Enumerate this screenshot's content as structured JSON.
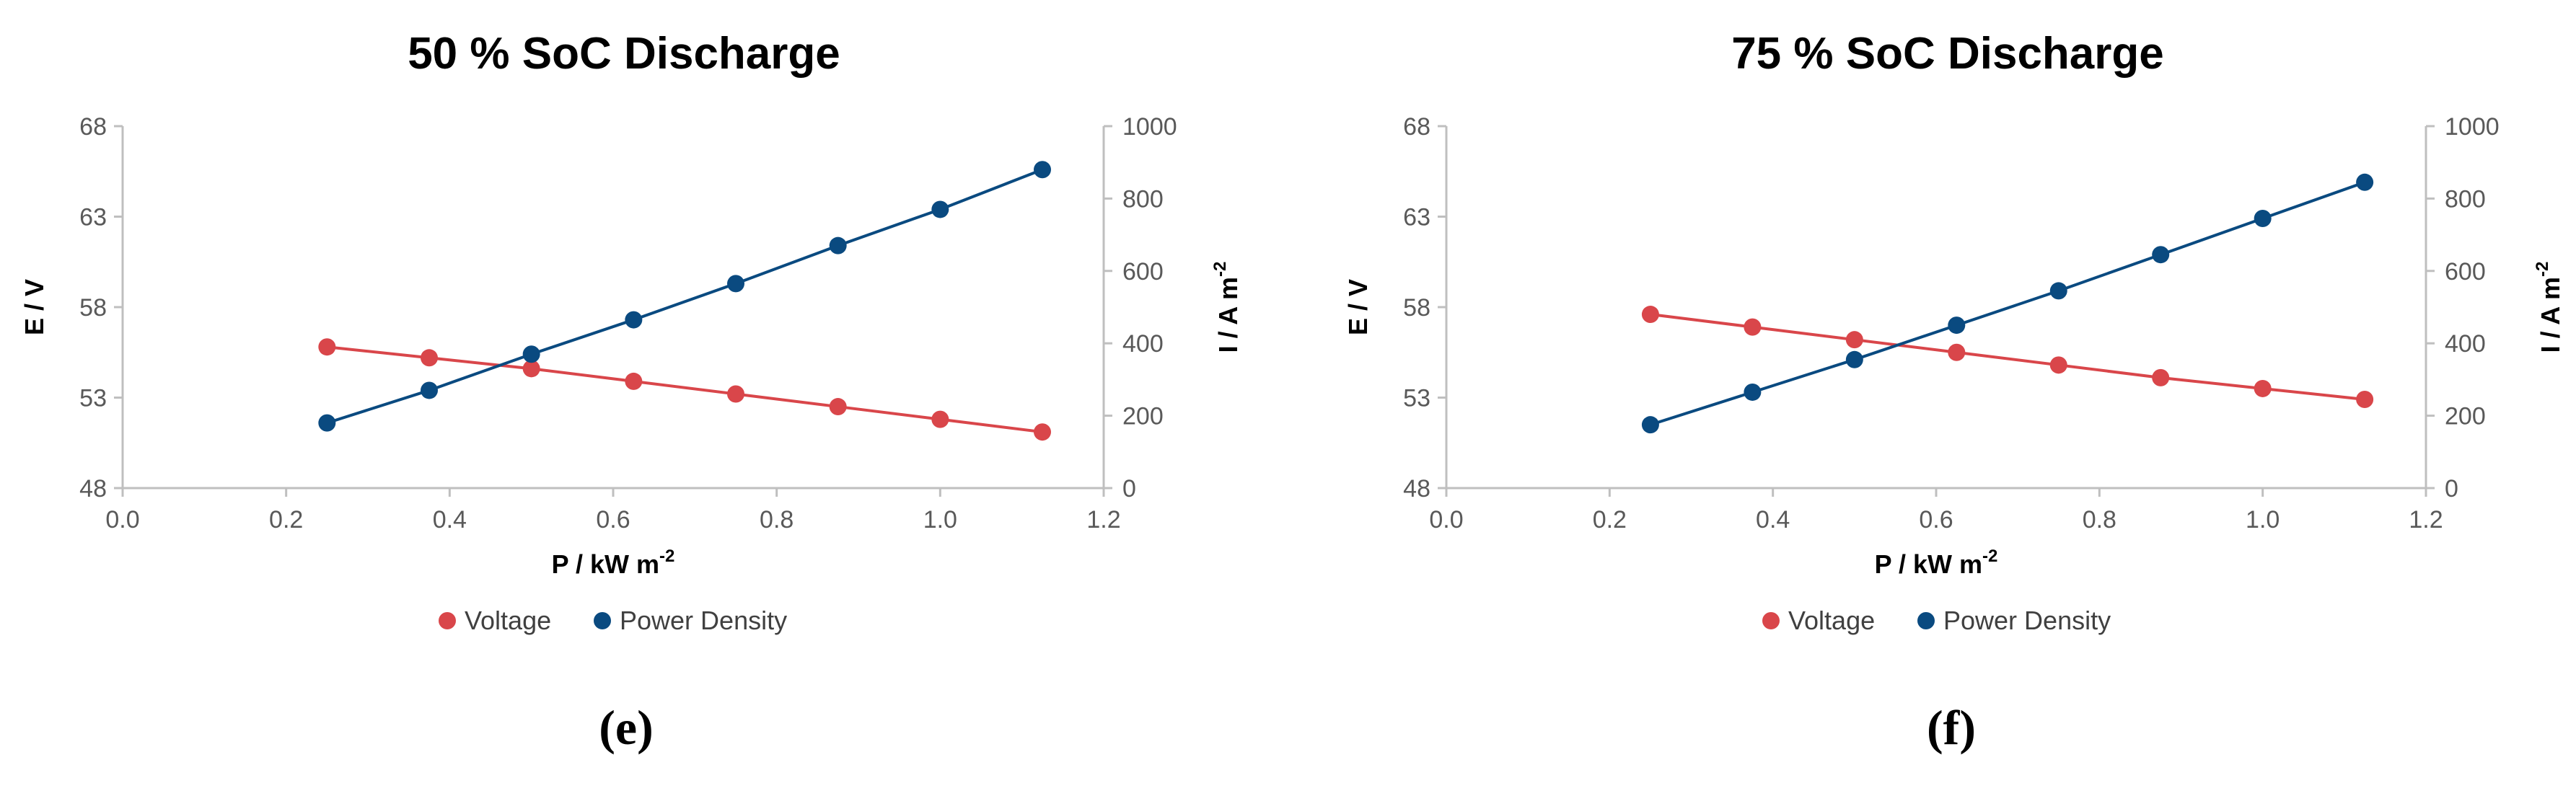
{
  "colors": {
    "voltage": "#d9464a",
    "power_density": "#0a4a80",
    "axis": "#bfbfbf"
  },
  "chart_data": [
    {
      "type": "line",
      "title": "50 % SoC Discharge",
      "panel_label": "(e)",
      "xlabel": "P / kW m",
      "xlabel_sup": "-2",
      "ylabel": "E / V",
      "y2label": "I / A m",
      "y2label_sup": "-2",
      "xlim": [
        0.0,
        1.2
      ],
      "ylim": [
        48,
        68
      ],
      "y2lim": [
        0,
        1000
      ],
      "x_ticks": [
        "0.0",
        "0.2",
        "0.4",
        "0.6",
        "0.8",
        "1.0",
        "1.2"
      ],
      "y_ticks": [
        "48",
        "53",
        "58",
        "63",
        "68"
      ],
      "y2_ticks": [
        "0",
        "200",
        "400",
        "600",
        "800",
        "1000"
      ],
      "legend": "bottom",
      "grid": false,
      "series": [
        {
          "name": "Voltage",
          "axis": "left",
          "x": [
            0.25,
            0.375,
            0.5,
            0.625,
            0.75,
            0.875,
            1.0,
            1.125
          ],
          "y": [
            55.8,
            55.2,
            54.6,
            53.9,
            53.2,
            52.5,
            51.8,
            51.1
          ]
        },
        {
          "name": "Power Density",
          "axis": "right",
          "x": [
            0.25,
            0.375,
            0.5,
            0.625,
            0.75,
            0.875,
            1.0,
            1.125
          ],
          "y": [
            180,
            270,
            370,
            465,
            565,
            670,
            770,
            880
          ]
        }
      ]
    },
    {
      "type": "line",
      "title": "75 % SoC Discharge",
      "panel_label": "(f)",
      "xlabel": "P / kW m",
      "xlabel_sup": "-2",
      "ylabel": "E / V",
      "y2label": "I / A m",
      "y2label_sup": "-2",
      "xlim": [
        0.0,
        1.2
      ],
      "ylim": [
        48,
        68
      ],
      "y2lim": [
        0,
        1000
      ],
      "x_ticks": [
        "0.0",
        "0.2",
        "0.4",
        "0.6",
        "0.8",
        "1.0",
        "1.2"
      ],
      "y_ticks": [
        "48",
        "53",
        "58",
        "63",
        "68"
      ],
      "y2_ticks": [
        "0",
        "200",
        "400",
        "600",
        "800",
        "1000"
      ],
      "legend": "bottom",
      "grid": false,
      "series": [
        {
          "name": "Voltage",
          "axis": "left",
          "x": [
            0.25,
            0.375,
            0.5,
            0.625,
            0.75,
            0.875,
            1.0,
            1.125
          ],
          "y": [
            57.6,
            56.9,
            56.2,
            55.5,
            54.8,
            54.1,
            53.5,
            52.9
          ]
        },
        {
          "name": "Power Density",
          "axis": "right",
          "x": [
            0.25,
            0.375,
            0.5,
            0.625,
            0.75,
            0.875,
            1.0,
            1.125
          ],
          "y": [
            175,
            265,
            355,
            450,
            545,
            645,
            745,
            845
          ]
        }
      ]
    }
  ]
}
